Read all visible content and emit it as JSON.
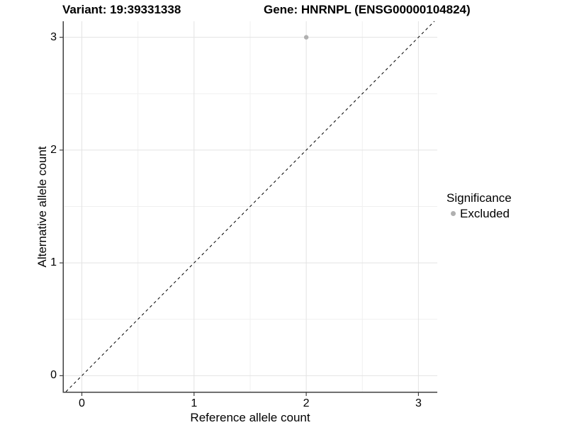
{
  "chart_data": {
    "type": "scatter",
    "title_left": "Variant: 19:39331338",
    "title_right": "Gene: HNRNPL (ENSG00000104824)",
    "xlabel": "Reference allele count",
    "ylabel": "Alternative allele count",
    "xlim": [
      -0.161,
      3.168
    ],
    "ylim": [
      -0.142,
      3.142
    ],
    "x_ticks": [
      0,
      1,
      2,
      3
    ],
    "y_ticks": [
      0,
      1,
      2,
      3
    ],
    "x_minor_ticks": [
      0.5,
      1.5,
      2.5
    ],
    "y_minor_ticks": [
      0.5,
      1.5,
      2.5
    ],
    "grid": true,
    "legend_position": "right",
    "series": [
      {
        "name": "Excluded",
        "color": "#b0b0b0",
        "points": [
          {
            "x": 2,
            "y": 3
          }
        ]
      }
    ],
    "reference_line": {
      "slope": 1,
      "intercept": 0,
      "style": "dashed",
      "color": "#000000"
    },
    "legend": {
      "title": "Significance",
      "items": [
        {
          "label": "Excluded",
          "color": "#b0b0b0"
        }
      ]
    }
  },
  "colors": {
    "background": "#ffffff",
    "axis_line": "#404040",
    "grid_major": "#e3e3e3",
    "grid_minor": "#f0f0f0",
    "text": "#000000"
  }
}
